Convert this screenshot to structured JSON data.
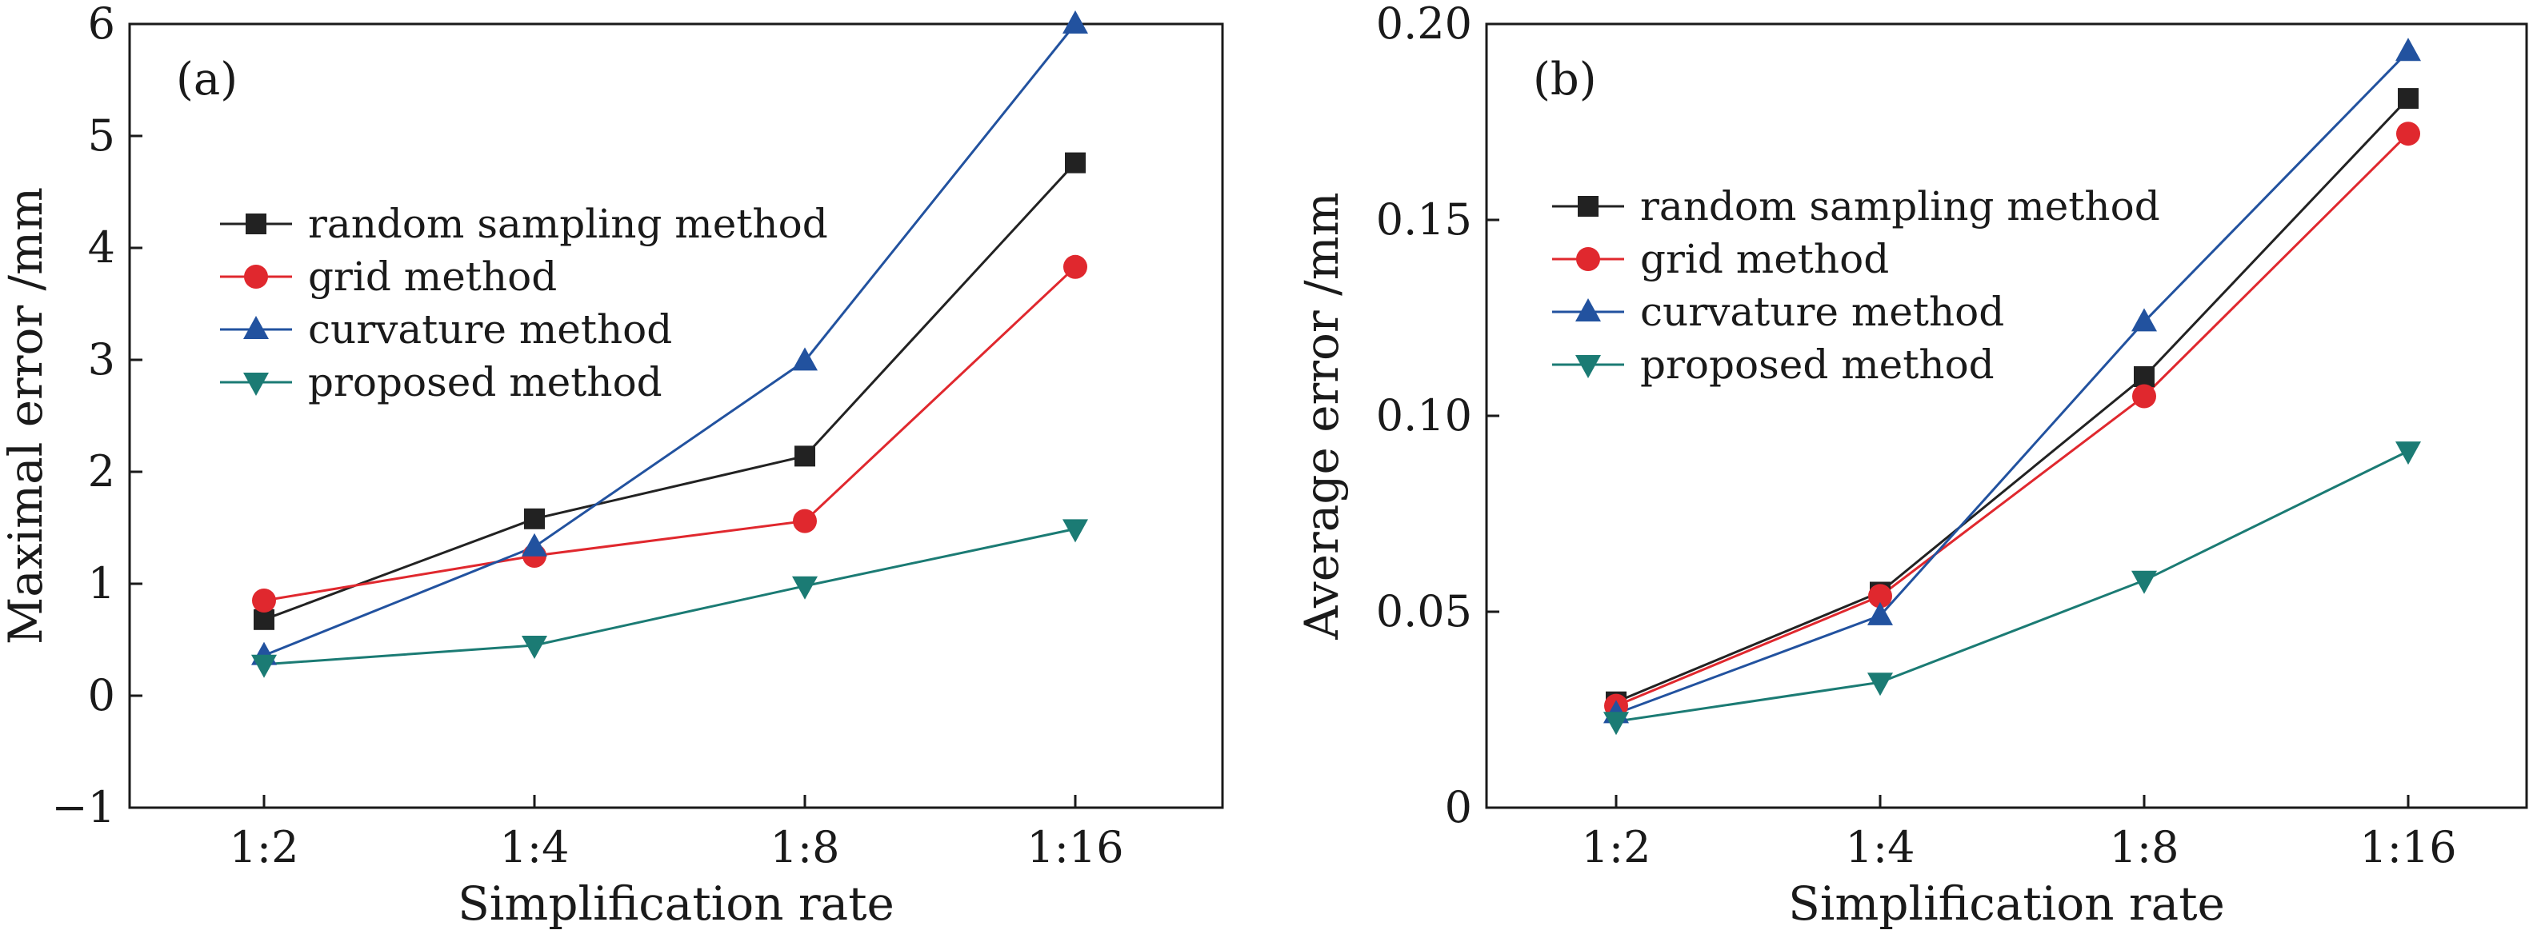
{
  "chart_data": [
    {
      "type": "line",
      "panel_label": "(a)",
      "xlabel": "Simplification rate",
      "ylabel": "Maximal error /mm",
      "categories": [
        "1:2",
        "1:4",
        "1:8",
        "1:16"
      ],
      "ylim": [
        -1,
        6
      ],
      "yticks": [
        -1,
        0,
        1,
        2,
        3,
        4,
        5,
        6
      ],
      "ytick_labels": [
        "−1",
        "0",
        "1",
        "2",
        "3",
        "4",
        "5",
        "6"
      ],
      "legend_position": "upper-left",
      "series": [
        {
          "name": "random sampling method",
          "color": "#222222",
          "marker": "square",
          "values": [
            0.68,
            1.58,
            2.14,
            4.76
          ]
        },
        {
          "name": "grid method",
          "color": "#e0282e",
          "marker": "circle",
          "values": [
            0.85,
            1.25,
            1.56,
            3.83
          ]
        },
        {
          "name": "curvature method",
          "color": "#22529f",
          "marker": "triangle-up",
          "values": [
            0.36,
            1.33,
            2.99,
            6.0
          ]
        },
        {
          "name": "proposed method",
          "color": "#1b7b74",
          "marker": "triangle-down",
          "values": [
            0.28,
            0.45,
            0.98,
            1.49
          ]
        }
      ]
    },
    {
      "type": "line",
      "panel_label": "(b)",
      "xlabel": "Simplification rate",
      "ylabel": "Average error /mm",
      "categories": [
        "1:2",
        "1:4",
        "1:8",
        "1:16"
      ],
      "ylim": [
        0,
        0.2
      ],
      "yticks": [
        0,
        0.05,
        0.1,
        0.15,
        0.2
      ],
      "ytick_labels": [
        "0",
        "0.05",
        "0.10",
        "0.15",
        "0.20"
      ],
      "legend_position": "upper-left",
      "series": [
        {
          "name": "random sampling method",
          "color": "#222222",
          "marker": "square",
          "values": [
            0.027,
            0.055,
            0.11,
            0.181
          ]
        },
        {
          "name": "grid method",
          "color": "#e0282e",
          "marker": "circle",
          "values": [
            0.026,
            0.054,
            0.105,
            0.172
          ]
        },
        {
          "name": "curvature method",
          "color": "#22529f",
          "marker": "triangle-up",
          "values": [
            0.024,
            0.049,
            0.124,
            0.193
          ]
        },
        {
          "name": "proposed method",
          "color": "#1b7b74",
          "marker": "triangle-down",
          "values": [
            0.022,
            0.032,
            0.058,
            0.091
          ]
        }
      ]
    }
  ]
}
